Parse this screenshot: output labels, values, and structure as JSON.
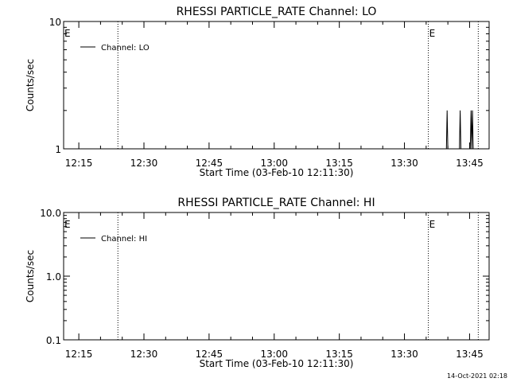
{
  "chart_data": [
    {
      "type": "line",
      "title": "RHESSI PARTICLE_RATE Channel: LO",
      "xlabel": "Start Time (03-Feb-10 12:11:30)",
      "ylabel": "Counts/sec",
      "y_scale": "log",
      "ylim": [
        1,
        10
      ],
      "y_ticks": [
        {
          "value": 1,
          "label": "1"
        },
        {
          "value": 10,
          "label": "10"
        }
      ],
      "xlim": [
        "12:11:30",
        "13:49:30"
      ],
      "x_ticks": [
        "12:15",
        "12:30",
        "12:45",
        "13:00",
        "13:15",
        "13:30",
        "13:45"
      ],
      "legend": "top-left",
      "series": [
        {
          "name": "Channel: LO",
          "points": [
            [
              "13:39:40",
              1
            ],
            [
              "13:39:50",
              2
            ],
            [
              "13:40:00",
              1
            ],
            [
              "13:42:40",
              1
            ],
            [
              "13:42:50",
              2
            ],
            [
              "13:43:00",
              1
            ],
            [
              "13:45:10",
              1
            ],
            [
              "13:45:20",
              2
            ],
            [
              "13:45:30",
              1
            ],
            [
              "13:45:40",
              2
            ],
            [
              "13:45:50",
              1
            ]
          ]
        }
      ],
      "markers": [
        {
          "time": "12:11:30",
          "line": false,
          "label": "E"
        },
        {
          "time": "12:24:00",
          "line": true,
          "label": ""
        },
        {
          "time": "13:35:30",
          "line": true,
          "label": "E"
        },
        {
          "time": "13:47:00",
          "line": true,
          "label": ""
        }
      ]
    },
    {
      "type": "line",
      "title": "RHESSI PARTICLE_RATE Channel: HI",
      "xlabel": "Start Time (03-Feb-10 12:11:30)",
      "ylabel": "Counts/sec",
      "y_scale": "log",
      "ylim": [
        0.1,
        10
      ],
      "y_ticks": [
        {
          "value": 0.1,
          "label": "0.1"
        },
        {
          "value": 1,
          "label": "1.0"
        },
        {
          "value": 10,
          "label": "10.0"
        }
      ],
      "xlim": [
        "12:11:30",
        "13:49:30"
      ],
      "x_ticks": [
        "12:15",
        "12:30",
        "12:45",
        "13:00",
        "13:15",
        "13:30",
        "13:45"
      ],
      "legend": "top-left",
      "series": [
        {
          "name": "Channel: HI",
          "points": []
        }
      ],
      "markers": [
        {
          "time": "12:11:30",
          "line": false,
          "label": "E"
        },
        {
          "time": "12:24:00",
          "line": true,
          "label": ""
        },
        {
          "time": "13:35:30",
          "line": true,
          "label": "E"
        },
        {
          "time": "13:47:00",
          "line": true,
          "label": ""
        }
      ]
    }
  ],
  "footer": {
    "timestamp": "14-Oct-2021 02:18"
  }
}
